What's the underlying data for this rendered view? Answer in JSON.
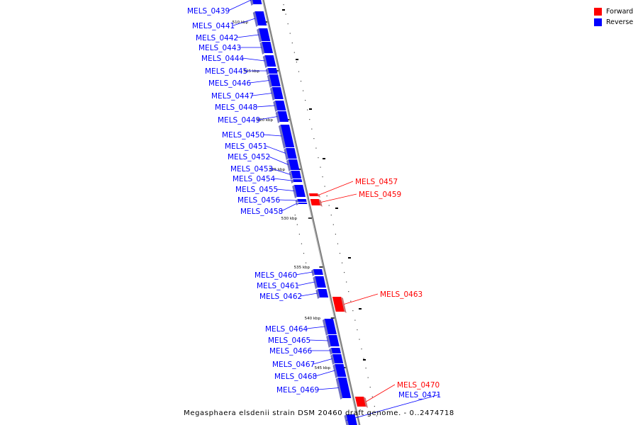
{
  "map": {
    "caption": "Megasphaera elsdenii strain DSM 20460 draft genome. - 0..2474718",
    "colors": {
      "forward": "#ff0000",
      "reverse": "#0000ff",
      "backbone": "#808080"
    }
  },
  "legend": {
    "items": [
      {
        "label": "Forward",
        "color": "#ff0000"
      },
      {
        "label": "Reverse",
        "color": "#0000ff"
      }
    ]
  },
  "ticks": [
    {
      "label": "510 kbp",
      "kbp": 510
    },
    {
      "label": "515 kbp",
      "kbp": 515
    },
    {
      "label": "520 kbp",
      "kbp": 520
    },
    {
      "label": "525 kbp",
      "kbp": 525
    },
    {
      "label": "530 kbp",
      "kbp": 530
    },
    {
      "label": "535 kbp",
      "kbp": 535
    },
    {
      "label": "540 kbp",
      "kbp": 540
    },
    {
      "label": "545 kbp",
      "kbp": 545
    }
  ],
  "genes": [
    {
      "name": "MELS_0439",
      "strand": "reverse"
    },
    {
      "name": "MELS_0441",
      "strand": "reverse"
    },
    {
      "name": "MELS_0442",
      "strand": "reverse"
    },
    {
      "name": "MELS_0443",
      "strand": "reverse"
    },
    {
      "name": "MELS_0444",
      "strand": "reverse"
    },
    {
      "name": "MELS_0445",
      "strand": "reverse"
    },
    {
      "name": "MELS_0446",
      "strand": "reverse"
    },
    {
      "name": "MELS_0447",
      "strand": "reverse"
    },
    {
      "name": "MELS_0448",
      "strand": "reverse"
    },
    {
      "name": "MELS_0449",
      "strand": "reverse"
    },
    {
      "name": "MELS_0450",
      "strand": "reverse"
    },
    {
      "name": "MELS_0451",
      "strand": "reverse"
    },
    {
      "name": "MELS_0452",
      "strand": "reverse"
    },
    {
      "name": "MELS_0453",
      "strand": "reverse"
    },
    {
      "name": "MELS_0454",
      "strand": "reverse"
    },
    {
      "name": "MELS_0455",
      "strand": "reverse"
    },
    {
      "name": "MELS_0456",
      "strand": "reverse"
    },
    {
      "name": "MELS_0458",
      "strand": "reverse"
    },
    {
      "name": "MELS_0457",
      "strand": "forward"
    },
    {
      "name": "MELS_0459",
      "strand": "forward"
    },
    {
      "name": "MELS_0460",
      "strand": "reverse"
    },
    {
      "name": "MELS_0461",
      "strand": "reverse"
    },
    {
      "name": "MELS_0462",
      "strand": "reverse"
    },
    {
      "name": "MELS_0463",
      "strand": "forward"
    },
    {
      "name": "MELS_0464",
      "strand": "reverse"
    },
    {
      "name": "MELS_0465",
      "strand": "reverse"
    },
    {
      "name": "MELS_0466",
      "strand": "reverse"
    },
    {
      "name": "MELS_0467",
      "strand": "reverse"
    },
    {
      "name": "MELS_0468",
      "strand": "reverse"
    },
    {
      "name": "MELS_0469",
      "strand": "reverse"
    },
    {
      "name": "MELS_0470",
      "strand": "forward"
    },
    {
      "name": "MELS_0471",
      "strand": "reverse"
    }
  ]
}
